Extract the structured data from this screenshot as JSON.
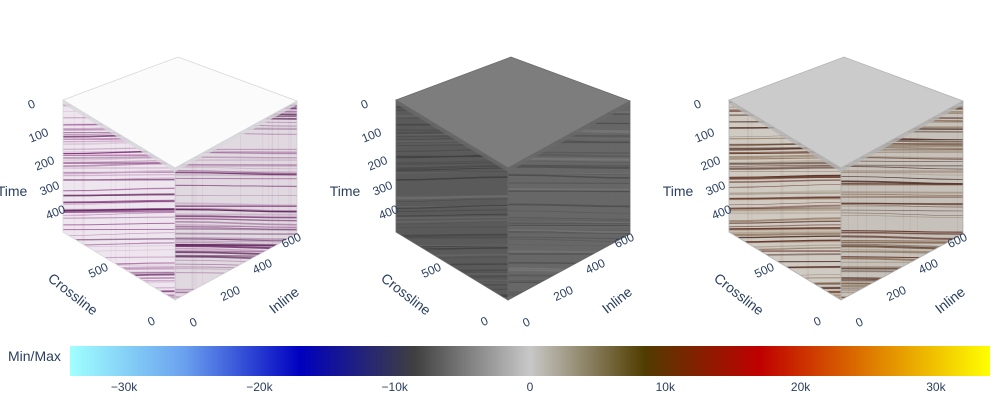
{
  "chart_data": {
    "type": "volume-3d",
    "panels": [
      {
        "axes": {
          "time": {
            "title": "Time",
            "ticks": [
              "0",
              "100",
              "200",
              "300",
              "400"
            ]
          },
          "crossline": {
            "title": "Crossline",
            "ticks": [
              "0",
              "500"
            ]
          },
          "inline": {
            "title": "Inline",
            "ticks": [
              "0",
              "200",
              "400",
              "600"
            ]
          }
        },
        "colorscale": [
          "#ffffff",
          "#6b1a62"
        ]
      },
      {
        "axes": {
          "time": {
            "title": "Time",
            "ticks": [
              "0",
              "100",
              "200",
              "300",
              "400"
            ]
          },
          "crossline": {
            "title": "Crossline",
            "ticks": [
              "0",
              "500"
            ]
          },
          "inline": {
            "title": "Inline",
            "ticks": [
              "0",
              "200",
              "400",
              "600"
            ]
          }
        },
        "colorscale": [
          "#4a4a4a",
          "#7f7f7f"
        ]
      },
      {
        "axes": {
          "time": {
            "title": "Time",
            "ticks": [
              "0",
              "100",
              "200",
              "300",
              "400"
            ]
          },
          "crossline": {
            "title": "Crossline",
            "ticks": [
              "0",
              "500"
            ]
          },
          "inline": {
            "title": "Inline",
            "ticks": [
              "0",
              "200",
              "400",
              "600"
            ]
          }
        },
        "colorscale": [
          "#d6d2cc",
          "#5a2418"
        ]
      }
    ],
    "colorbar": {
      "title": "Min/Max",
      "range": [
        -34000,
        34000
      ],
      "tickvals": [
        -30000,
        -20000,
        -10000,
        0,
        10000,
        20000,
        30000
      ],
      "ticktext": [
        "−30k",
        "−20k",
        "−10k",
        "0",
        "10k",
        "20k",
        "30k"
      ],
      "stops": [
        "#a0ffff",
        "#6aa0ee",
        "#0000c0",
        "#404040",
        "#c8c8c8",
        "#503c00",
        "#c00000",
        "#e08000",
        "#ffff00"
      ]
    }
  }
}
